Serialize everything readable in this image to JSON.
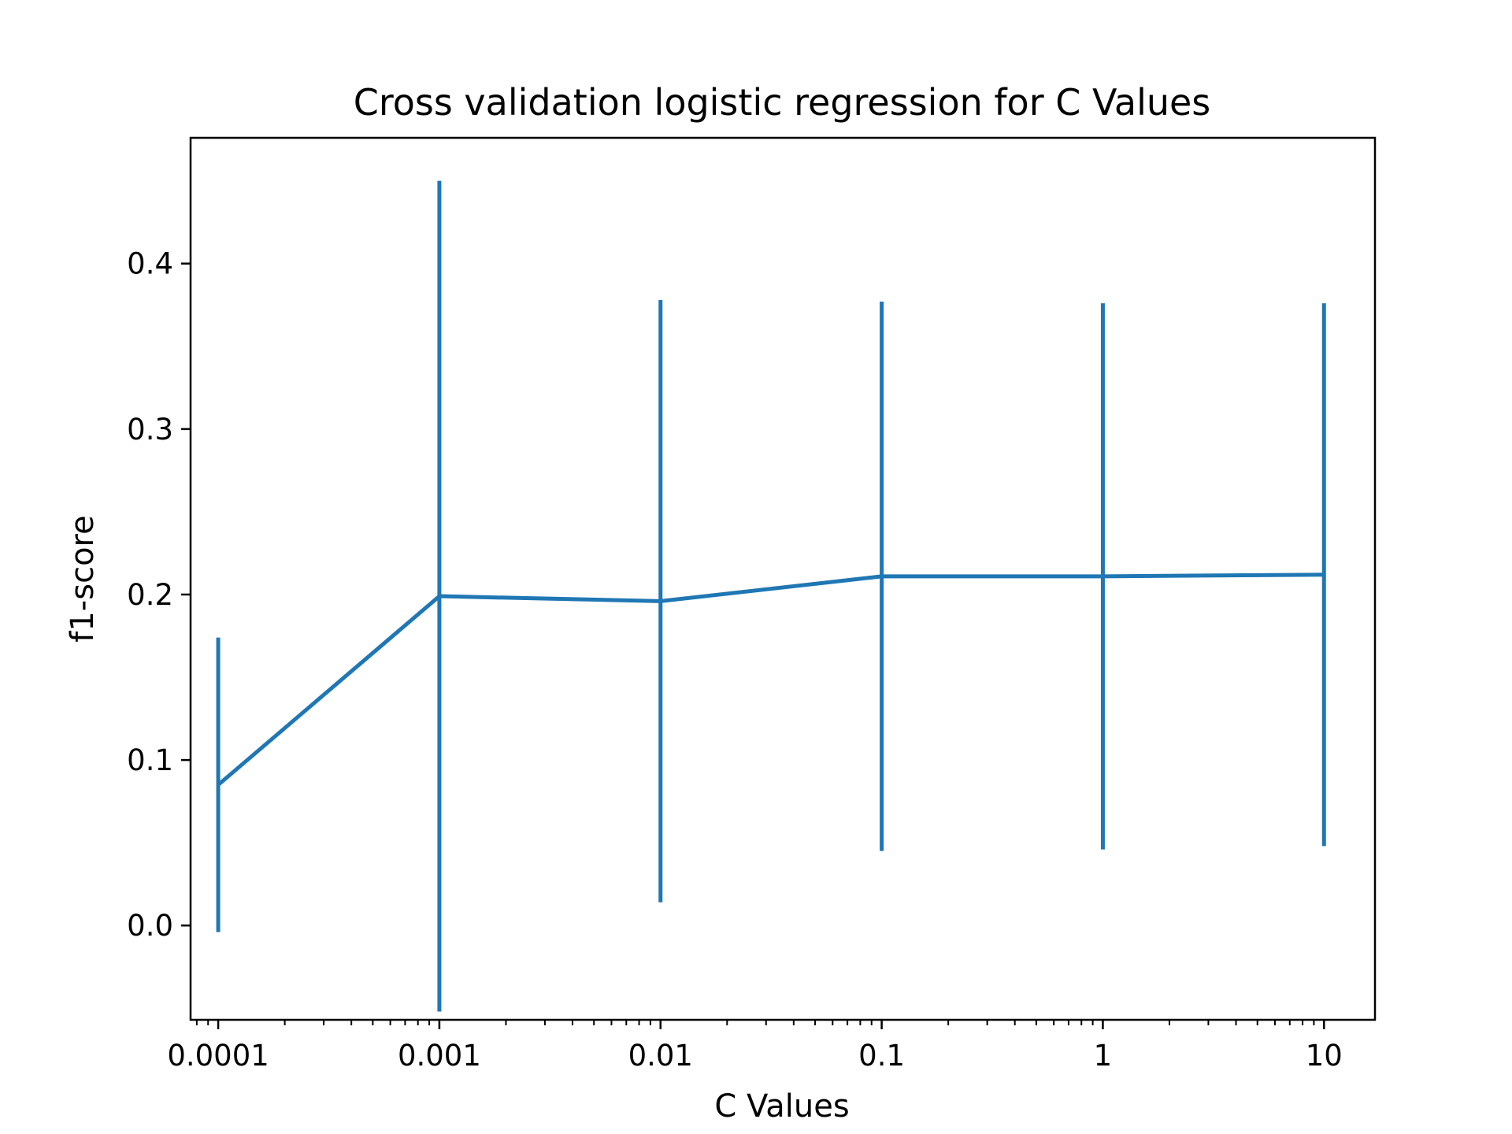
{
  "chart_data": {
    "type": "line",
    "title": "Cross validation logistic regression for C Values",
    "xlabel": "C Values",
    "ylabel": "f1-score",
    "x_scale": "log",
    "xlim": [
      7.5e-05,
      17
    ],
    "ylim": [
      -0.057,
      0.476
    ],
    "x_ticks": [
      0.0001,
      0.001,
      0.01,
      0.1,
      1,
      10
    ],
    "x_tick_labels": [
      "0.0001",
      "0.001",
      "0.01",
      "0.1",
      "1",
      "10"
    ],
    "y_ticks": [
      0.0,
      0.1,
      0.2,
      0.3,
      0.4
    ],
    "y_tick_labels": [
      "0.0",
      "0.1",
      "0.2",
      "0.3",
      "0.4"
    ],
    "grid": false,
    "series": [
      {
        "x": [
          0.0001,
          0.001,
          0.01,
          0.1,
          1,
          10
        ],
        "y": [
          0.085,
          0.199,
          0.196,
          0.211,
          0.211,
          0.212
        ],
        "error": [
          0.089,
          0.251,
          0.182,
          0.166,
          0.165,
          0.164
        ],
        "color": "#1f77b4"
      }
    ]
  }
}
